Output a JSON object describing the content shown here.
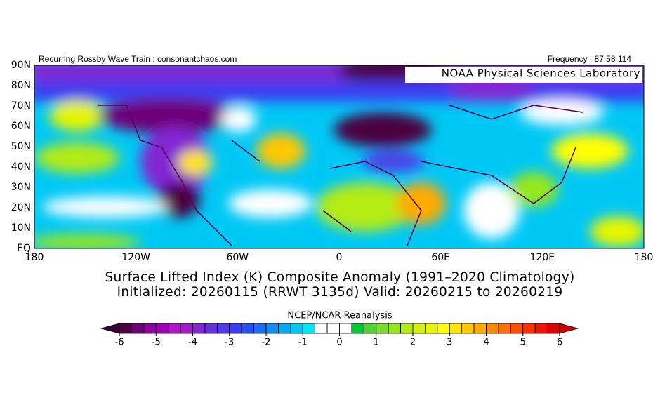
{
  "header": {
    "left": "Recurring Rossby Wave Train : consonantchaos.com",
    "right": "Frequency : 87 58 114"
  },
  "map": {
    "label": "NOAA Physical Sciences Laboratory",
    "lat_labels": [
      "90N",
      "80N",
      "70N",
      "60N",
      "50N",
      "40N",
      "30N",
      "20N",
      "10N",
      "EQ"
    ],
    "lon_labels": [
      "180",
      "120W",
      "60W",
      "0",
      "60E",
      "120E",
      "180"
    ]
  },
  "title": {
    "line1": "Surface Lifted Index (K) Composite Anomaly (1991–2020 Climatology)",
    "line2": "Initialized: 20260115 (RRWT 3135d) Valid: 20260215 to 20260219"
  },
  "colorbar": {
    "label": "NCEP/NCAR Reanalysis",
    "ticks": [
      -6,
      -5,
      -4,
      -3,
      -2,
      -1,
      0,
      1,
      2,
      3,
      4,
      5,
      6
    ],
    "under_color": "#3c0032",
    "over_color": "#d20000",
    "colors": [
      "#4b0040",
      "#6e0078",
      "#8c00a0",
      "#a000b4",
      "#b414c8",
      "#a01ec8",
      "#8228d2",
      "#6432dc",
      "#503ce6",
      "#3c3cf0",
      "#2850f0",
      "#1e6ef0",
      "#148cf0",
      "#00aaf5",
      "#00c8f5",
      "#00e6f5",
      "#ffffff",
      "#ffffff",
      "#ffffff",
      "#00c832",
      "#50d232",
      "#78dc28",
      "#96e61e",
      "#b4eb14",
      "#d2f00a",
      "#e6f500",
      "#ffff00",
      "#ffe600",
      "#ffc800",
      "#ffaa00",
      "#ff8c00",
      "#ff6e00",
      "#ff5000",
      "#ff3200",
      "#f01400",
      "#dc0000"
    ]
  }
}
